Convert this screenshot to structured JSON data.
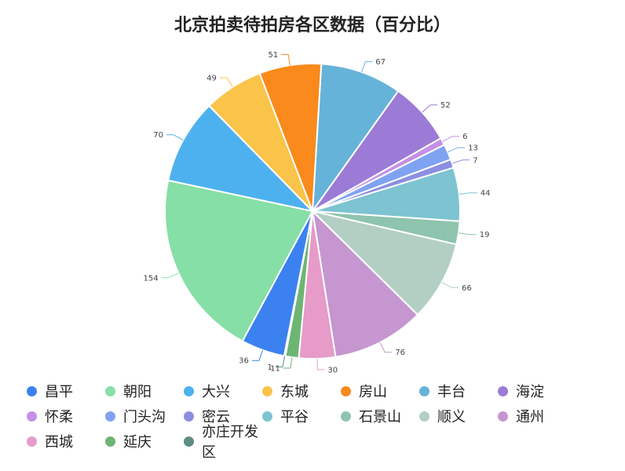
{
  "chart_data": {
    "type": "pie",
    "title": "北京拍卖待拍房各区数据（百分比）",
    "categories": [
      "昌平",
      "朝阳",
      "大兴",
      "东城",
      "房山",
      "丰台",
      "海淀",
      "怀柔",
      "门头沟",
      "密云",
      "平谷",
      "石景山",
      "顺义",
      "通州",
      "西城",
      "延庆",
      "亦庄开发区"
    ],
    "values": [
      36,
      154,
      70,
      49,
      51,
      67,
      52,
      6,
      13,
      7,
      44,
      19,
      66,
      76,
      30,
      11,
      1
    ],
    "slices": [
      {
        "label": "丰台",
        "value": 67,
        "color": "#66B3D9"
      },
      {
        "label": "海淀",
        "value": 52,
        "color": "#9B7BD6"
      },
      {
        "label": "怀柔",
        "value": 6,
        "color": "#C490E8"
      },
      {
        "label": "门头沟",
        "value": 13,
        "color": "#7FA3F2"
      },
      {
        "label": "密云",
        "value": 7,
        "color": "#8C8FE0"
      },
      {
        "label": "平谷",
        "value": 44,
        "color": "#7DC3D1"
      },
      {
        "label": "石景山",
        "value": 19,
        "color": "#8EC4AE"
      },
      {
        "label": "顺义",
        "value": 66,
        "color": "#B3CFC4"
      },
      {
        "label": "通州",
        "value": 76,
        "color": "#C596D0"
      },
      {
        "label": "西城",
        "value": 30,
        "color": "#E69BC8"
      },
      {
        "label": "延庆",
        "value": 11,
        "color": "#6DB572"
      },
      {
        "label": "亦庄开发区",
        "value": 1,
        "color": "#5F8C84"
      },
      {
        "label": "昌平",
        "value": 36,
        "color": "#3B82F0"
      },
      {
        "label": "朝阳",
        "value": 154,
        "color": "#86DFA6"
      },
      {
        "label": "大兴",
        "value": 70,
        "color": "#4EB1EF"
      },
      {
        "label": "东城",
        "value": 49,
        "color": "#FAC34A"
      },
      {
        "label": "房山",
        "value": 51,
        "color": "#F98A1B"
      }
    ],
    "legend": {
      "placement": "bottom",
      "items": [
        {
          "label": "昌平",
          "color": "#3B82F0"
        },
        {
          "label": "朝阳",
          "color": "#86DFA6"
        },
        {
          "label": "大兴",
          "color": "#4EB1EF"
        },
        {
          "label": "东城",
          "color": "#FAC34A"
        },
        {
          "label": "房山",
          "color": "#F98A1B"
        },
        {
          "label": "丰台",
          "color": "#66B3D9"
        },
        {
          "label": "海淀",
          "color": "#9B7BD6"
        },
        {
          "label": "怀柔",
          "color": "#C490E8"
        },
        {
          "label": "门头沟",
          "color": "#7FA3F2"
        },
        {
          "label": "密云",
          "color": "#8C8FE0"
        },
        {
          "label": "平谷",
          "color": "#7DC3D1"
        },
        {
          "label": "石景山",
          "color": "#8EC4AE"
        },
        {
          "label": "顺义",
          "color": "#B3CFC4"
        },
        {
          "label": "通州",
          "color": "#C596D0"
        },
        {
          "label": "西城",
          "color": "#E69BC8"
        },
        {
          "label": "延庆",
          "color": "#6DB572"
        },
        {
          "label": "亦庄开发区",
          "color": "#5F8C84"
        }
      ]
    }
  }
}
